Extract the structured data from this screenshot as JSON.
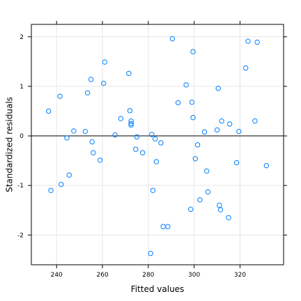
{
  "chart_data": {
    "type": "scatter",
    "title": "",
    "xlabel": "Fitted values",
    "ylabel": "Standardized residuals",
    "xlim": [
      229,
      339
    ],
    "ylim": [
      -2.6,
      2.25
    ],
    "xticks": [
      240,
      260,
      280,
      300,
      320
    ],
    "yticks": [
      -2,
      -1,
      0,
      1,
      2
    ],
    "grid": true,
    "reference_line_y": 0,
    "point_color": "#0080ff",
    "points": [
      {
        "x": 236.5,
        "y": 0.5
      },
      {
        "x": 237.5,
        "y": -1.1
      },
      {
        "x": 241.5,
        "y": 0.8
      },
      {
        "x": 242.0,
        "y": -0.98
      },
      {
        "x": 244.5,
        "y": -0.04
      },
      {
        "x": 245.5,
        "y": -0.79
      },
      {
        "x": 247.5,
        "y": 0.1
      },
      {
        "x": 252.5,
        "y": 0.09
      },
      {
        "x": 253.5,
        "y": 0.87
      },
      {
        "x": 255.0,
        "y": 1.14
      },
      {
        "x": 255.5,
        "y": -0.12
      },
      {
        "x": 256.0,
        "y": -0.34
      },
      {
        "x": 259.0,
        "y": -0.49
      },
      {
        "x": 260.5,
        "y": 1.06
      },
      {
        "x": 261.0,
        "y": 1.49
      },
      {
        "x": 265.5,
        "y": 0.02
      },
      {
        "x": 268.0,
        "y": 0.35
      },
      {
        "x": 271.5,
        "y": 1.26
      },
      {
        "x": 272.0,
        "y": 0.51
      },
      {
        "x": 272.5,
        "y": 0.3
      },
      {
        "x": 272.5,
        "y": 0.25
      },
      {
        "x": 272.5,
        "y": 0.22
      },
      {
        "x": 274.5,
        "y": -0.27
      },
      {
        "x": 275.0,
        "y": -0.02
      },
      {
        "x": 277.5,
        "y": -0.34
      },
      {
        "x": 281.0,
        "y": -2.37
      },
      {
        "x": 281.5,
        "y": 0.03
      },
      {
        "x": 282.0,
        "y": -1.1
      },
      {
        "x": 283.0,
        "y": -0.06
      },
      {
        "x": 283.5,
        "y": -0.52
      },
      {
        "x": 285.5,
        "y": -0.14
      },
      {
        "x": 286.5,
        "y": -1.83
      },
      {
        "x": 288.5,
        "y": -1.83
      },
      {
        "x": 290.5,
        "y": 1.96
      },
      {
        "x": 293.0,
        "y": 0.67
      },
      {
        "x": 296.5,
        "y": 1.03
      },
      {
        "x": 298.5,
        "y": -1.48
      },
      {
        "x": 299.0,
        "y": 0.68
      },
      {
        "x": 299.5,
        "y": 1.7
      },
      {
        "x": 299.5,
        "y": 0.37
      },
      {
        "x": 300.5,
        "y": -0.46
      },
      {
        "x": 301.5,
        "y": -0.18
      },
      {
        "x": 302.5,
        "y": -1.29
      },
      {
        "x": 304.5,
        "y": 0.08
      },
      {
        "x": 305.5,
        "y": -0.71
      },
      {
        "x": 306.0,
        "y": -1.13
      },
      {
        "x": 310.0,
        "y": 0.12
      },
      {
        "x": 310.5,
        "y": 0.96
      },
      {
        "x": 311.0,
        "y": -1.4
      },
      {
        "x": 311.5,
        "y": -1.49
      },
      {
        "x": 312.0,
        "y": 0.3
      },
      {
        "x": 315.0,
        "y": -1.65
      },
      {
        "x": 315.5,
        "y": 0.24
      },
      {
        "x": 318.5,
        "y": -0.54
      },
      {
        "x": 319.5,
        "y": 0.09
      },
      {
        "x": 322.5,
        "y": 1.37
      },
      {
        "x": 323.5,
        "y": 1.91
      },
      {
        "x": 326.5,
        "y": 0.3
      },
      {
        "x": 327.5,
        "y": 1.89
      },
      {
        "x": 331.5,
        "y": -0.6
      }
    ]
  }
}
